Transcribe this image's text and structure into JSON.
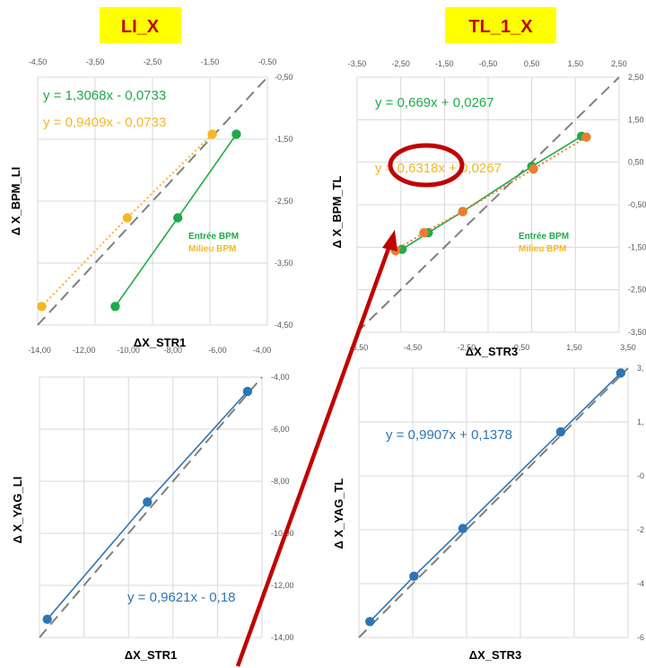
{
  "headers": {
    "left": "LI_X",
    "right": "TL_1_X"
  },
  "colors": {
    "green": "#1faa4a",
    "orange": "#f5b724",
    "orange_dark": "#ed7d31",
    "blue": "#2e75b6",
    "title_bg": "#ffff00",
    "title_fg": "#c00000",
    "annotation": "#c00000",
    "grid": "#d9d9d9",
    "identity": "#7f7f7f"
  },
  "annotation": {
    "shape": "red-ellipse-with-arrow",
    "target": "0,6318"
  },
  "chart_data": [
    {
      "id": "li-bpm",
      "type": "scatter",
      "xlabel": "ΔX_STR1",
      "ylabel": "Δ X_BPM_LI",
      "xlim": [
        -4.5,
        -0.5
      ],
      "ylim": [
        -4.5,
        -0.5
      ],
      "xticks": [
        "-4,50",
        "-3,50",
        "-2,50",
        "-1,50",
        "-0,50"
      ],
      "yticks": [
        "-0,50",
        "-1,50",
        "-2,50",
        "-3,50",
        "-4,50"
      ],
      "grid": true,
      "identity_line": true,
      "legend": {
        "position": "right",
        "entries": [
          "Entrée BPM",
          "Milieu BPM"
        ]
      },
      "series": [
        {
          "name": "Entrée BPM",
          "color": "#1faa4a",
          "line": "solid",
          "x": [
            -1.04,
            -2.06,
            -3.15
          ],
          "y": [
            -1.42,
            -2.77,
            -4.2
          ],
          "equation": "y = 1,3068x - 0,0733"
        },
        {
          "name": "Milieu BPM",
          "color": "#f5b724",
          "line": "dotted",
          "x": [
            -1.46,
            -2.94,
            -4.43
          ],
          "y": [
            -1.42,
            -2.77,
            -4.2
          ],
          "equation": "y = 0,9409x - 0,0733"
        }
      ]
    },
    {
      "id": "tl-bpm",
      "type": "scatter",
      "xlabel": "ΔX_STR3",
      "ylabel": "Δ X_BPM_TL",
      "xlim": [
        -3.5,
        2.5
      ],
      "ylim": [
        -3.5,
        2.5
      ],
      "xticks": [
        "-3,50",
        "-2,50",
        "-1,50",
        "-0,50",
        "0,50",
        "1,50",
        "2,50"
      ],
      "yticks": [
        "2,50",
        "1,50",
        "0,50",
        "-0,50",
        "-1,50",
        "-2,50",
        "-3,50"
      ],
      "grid": true,
      "identity_line": true,
      "legend": {
        "position": "right",
        "entries": [
          "Entrée BPM",
          "Milieu BPM"
        ]
      },
      "series": [
        {
          "name": "Entrée BPM",
          "color": "#1faa4a",
          "line": "solid",
          "x": [
            -2.47,
            -1.87,
            -1.08,
            0.5,
            1.64
          ],
          "y": [
            -1.55,
            -1.16,
            -0.66,
            0.4,
            1.11
          ],
          "equation": "y = 0,669x + 0,0267"
        },
        {
          "name": "Milieu BPM",
          "color": "#ed7d31",
          "line": "dotted",
          "x": [
            -2.62,
            -1.97,
            -1.08,
            0.54,
            1.75
          ],
          "y": [
            -1.58,
            -1.16,
            -0.66,
            0.34,
            1.09
          ],
          "equation": "y = 0,6318x + 0,0267"
        }
      ]
    },
    {
      "id": "li-yag",
      "type": "scatter",
      "xlabel": "ΔX_STR1",
      "ylabel": "Δ X_YAG_LI",
      "xlim": [
        -14.0,
        -4.0
      ],
      "ylim": [
        -14.0,
        -4.0
      ],
      "xticks": [
        "-14,00",
        "-12,00",
        "-10,00",
        "-8,00",
        "-6,00",
        "-4,00"
      ],
      "yticks": [
        "-4,00",
        "-6,00",
        "-8,00",
        "-10,00",
        "-12,00",
        "-14,00"
      ],
      "grid": true,
      "identity_line": true,
      "series": [
        {
          "color": "#2e75b6",
          "line": "solid",
          "x": [
            -13.65,
            -9.15,
            -4.65
          ],
          "y": [
            -13.3,
            -8.8,
            -4.55
          ],
          "equation": "y = 0,9621x - 0,18"
        }
      ]
    },
    {
      "id": "tl-yag",
      "type": "scatter",
      "xlabel": "ΔX_STR3",
      "ylabel": "Δ X_YAG_TL",
      "xlim": [
        -6.5,
        4.5
      ],
      "ylim": [
        -6.5,
        4.5
      ],
      "xticks": [
        "-6,50",
        "-4,50",
        "-2,50",
        "-0,50",
        "1,50",
        "3,50"
      ],
      "yticks": [
        "3,",
        "1,",
        "-0",
        "-2",
        "-4",
        "-6"
      ],
      "grid": true,
      "identity_line": true,
      "series": [
        {
          "color": "#2e75b6",
          "line": "solid",
          "x": [
            -6.05,
            -4.25,
            -2.25,
            1.75,
            4.2
          ],
          "y": [
            -5.85,
            -4.0,
            -2.05,
            1.9,
            4.3
          ],
          "equation": "y = 0,9907x + 0,1378"
        }
      ]
    }
  ]
}
